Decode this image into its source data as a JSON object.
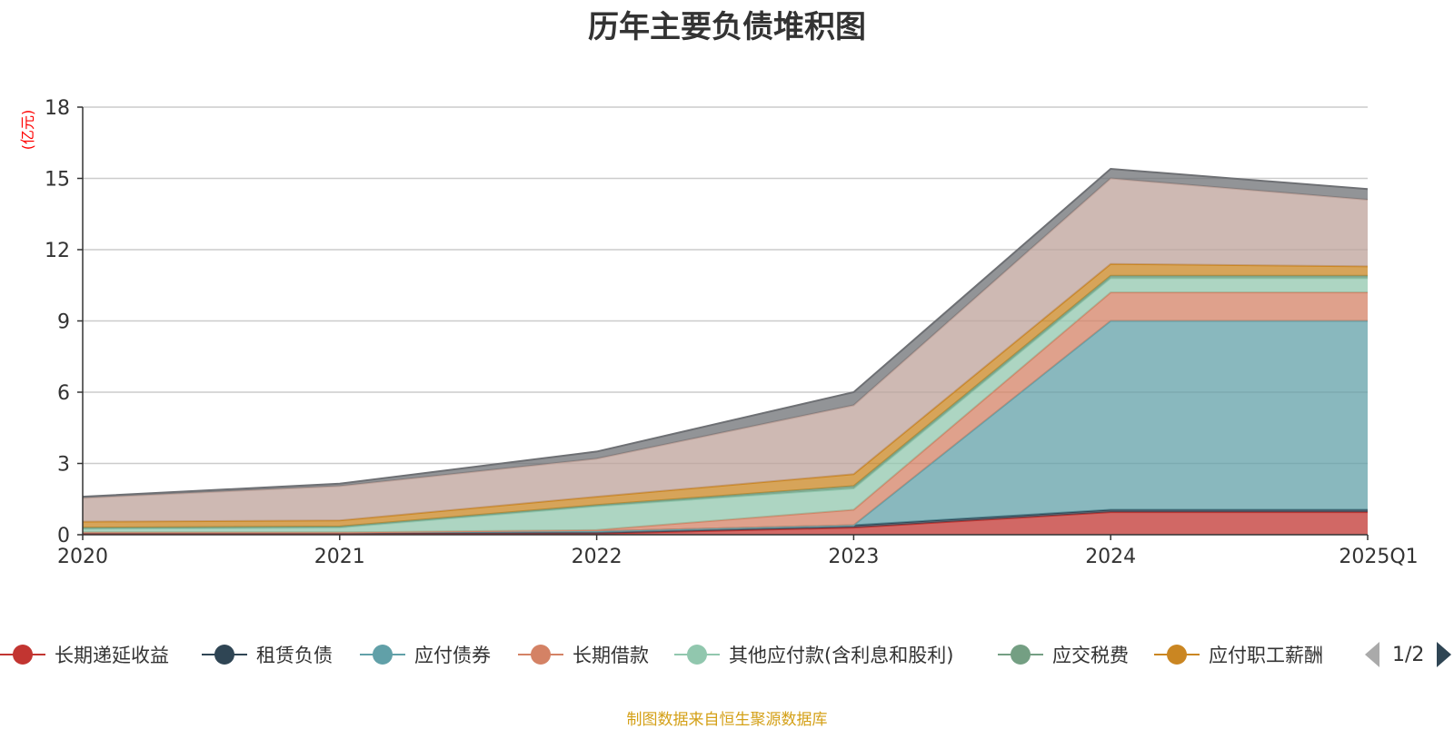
{
  "chart_data": {
    "type": "area",
    "stacked": true,
    "title": "历年主要负债堆积图",
    "unit_label": "(亿元)",
    "categories": [
      "2020",
      "2021",
      "2022",
      "2023",
      "2024",
      "2025Q1"
    ],
    "ylim": [
      0,
      18
    ],
    "yticks": [
      0,
      3,
      6,
      9,
      12,
      15,
      18
    ],
    "grid": true,
    "legend_position": "bottom",
    "series": [
      {
        "name": "长期递延收益",
        "color": "#c23531",
        "values": [
          0.05,
          0.05,
          0.05,
          0.3,
          0.95,
          0.95
        ]
      },
      {
        "name": "租赁负债",
        "color": "#2f4554",
        "values": [
          0.05,
          0.05,
          0.1,
          0.1,
          0.1,
          0.1
        ]
      },
      {
        "name": "应付债券",
        "color": "#61a0a8",
        "values": [
          0,
          0,
          0,
          0,
          7.95,
          7.95
        ]
      },
      {
        "name": "长期借款",
        "color": "#d48265",
        "values": [
          0,
          0,
          0.05,
          0.65,
          1.2,
          1.2
        ]
      },
      {
        "name": "其他应付款(含利息和股利)",
        "color": "#91c7ae",
        "values": [
          0.15,
          0.2,
          1.0,
          0.9,
          0.6,
          0.6
        ]
      },
      {
        "name": "应交税费",
        "color": "#749f83",
        "values": [
          0.05,
          0.05,
          0.05,
          0.1,
          0.1,
          0.1
        ]
      },
      {
        "name": "应付职工薪酬",
        "color": "#ca8622",
        "values": [
          0.25,
          0.25,
          0.35,
          0.5,
          0.5,
          0.4
        ]
      },
      {
        "name": "",
        "color": "#bda29a",
        "values": [
          1.0,
          1.45,
          1.6,
          2.9,
          3.6,
          2.8
        ]
      },
      {
        "name": "",
        "color": "#6e7074",
        "values": [
          0.05,
          0.1,
          0.3,
          0.55,
          0.4,
          0.45
        ]
      }
    ],
    "source_note": "制图数据来自恒生聚源数据库"
  },
  "legend": {
    "items": [
      "长期递延收益",
      "租赁负债",
      "应付债券",
      "长期借款",
      "其他应付款(含利息和股利)",
      "应交税费",
      "应付职工薪酬"
    ],
    "page": "1/2"
  }
}
